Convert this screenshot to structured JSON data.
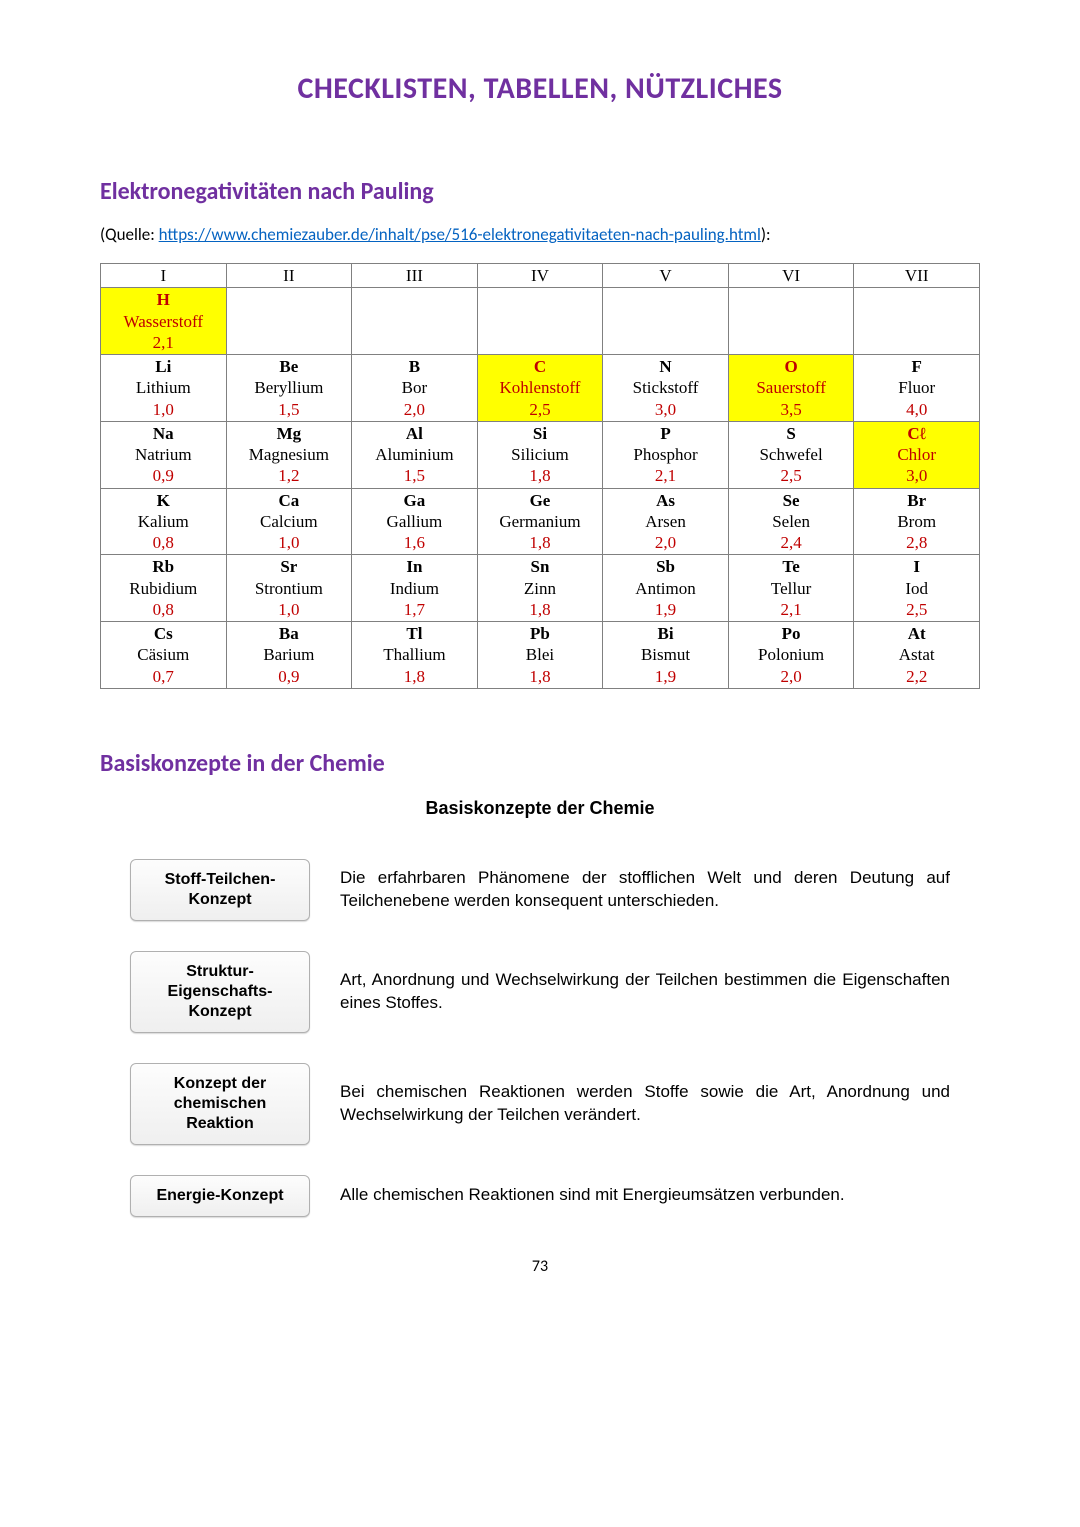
{
  "page": {
    "title": "CHECKLISTEN, TABELLEN, NÜTZLICHES",
    "title_color": "#7030a0",
    "number": "73"
  },
  "section1": {
    "heading": "Elektronegativitäten nach Pauling",
    "heading_color": "#7030a0",
    "source_prefix": "(Quelle: ",
    "source_link_text": "https://www.chemiezauber.de/inhalt/pse/516-elektronegativitaeten-nach-pauling.html",
    "source_link_color": "#0563c1",
    "source_suffix": "):"
  },
  "table": {
    "headers": [
      "I",
      "II",
      "III",
      "IV",
      "V",
      "VI",
      "VII"
    ],
    "value_color": "#c00000",
    "highlight_bg": "#ffff00",
    "highlight_text": "#c00000",
    "rows": [
      [
        {
          "sym": "H",
          "name": "Wasserstoff",
          "val": "2,1",
          "hl": true
        },
        null,
        null,
        null,
        null,
        null,
        null
      ],
      [
        {
          "sym": "Li",
          "name": "Lithium",
          "val": "1,0"
        },
        {
          "sym": "Be",
          "name": "Beryllium",
          "val": "1,5"
        },
        {
          "sym": "B",
          "name": "Bor",
          "val": "2,0"
        },
        {
          "sym": "C",
          "name": "Kohlenstoff",
          "val": "2,5",
          "hl": true
        },
        {
          "sym": "N",
          "name": "Stickstoff",
          "val": "3,0"
        },
        {
          "sym": "O",
          "name": "Sauerstoff",
          "val": "3,5",
          "hl": true
        },
        {
          "sym": "F",
          "name": "Fluor",
          "val": "4,0"
        }
      ],
      [
        {
          "sym": "Na",
          "name": "Natrium",
          "val": "0,9"
        },
        {
          "sym": "Mg",
          "name": "Magnesium",
          "val": "1,2"
        },
        {
          "sym": "Al",
          "name": "Aluminium",
          "val": "1,5"
        },
        {
          "sym": "Si",
          "name": "Silicium",
          "val": "1,8"
        },
        {
          "sym": "P",
          "name": "Phosphor",
          "val": "2,1"
        },
        {
          "sym": "S",
          "name": "Schwefel",
          "val": "2,5"
        },
        {
          "sym": "Cℓ",
          "name": "Chlor",
          "val": "3,0",
          "hl": true
        }
      ],
      [
        {
          "sym": "K",
          "name": "Kalium",
          "val": "0,8"
        },
        {
          "sym": "Ca",
          "name": "Calcium",
          "val": "1,0"
        },
        {
          "sym": "Ga",
          "name": "Gallium",
          "val": "1,6"
        },
        {
          "sym": "Ge",
          "name": "Germanium",
          "val": "1,8"
        },
        {
          "sym": "As",
          "name": "Arsen",
          "val": "2,0"
        },
        {
          "sym": "Se",
          "name": "Selen",
          "val": "2,4"
        },
        {
          "sym": "Br",
          "name": "Brom",
          "val": "2,8"
        }
      ],
      [
        {
          "sym": "Rb",
          "name": "Rubidium",
          "val": "0,8"
        },
        {
          "sym": "Sr",
          "name": "Strontium",
          "val": "1,0"
        },
        {
          "sym": "In",
          "name": "Indium",
          "val": "1,7"
        },
        {
          "sym": "Sn",
          "name": "Zinn",
          "val": "1,8"
        },
        {
          "sym": "Sb",
          "name": "Antimon",
          "val": "1,9"
        },
        {
          "sym": "Te",
          "name": "Tellur",
          "val": "2,1"
        },
        {
          "sym": "I",
          "name": "Iod",
          "val": "2,5"
        }
      ],
      [
        {
          "sym": "Cs",
          "name": "Cäsium",
          "val": "0,7"
        },
        {
          "sym": "Ba",
          "name": "Barium",
          "val": "0,9"
        },
        {
          "sym": "Tl",
          "name": "Thallium",
          "val": "1,8"
        },
        {
          "sym": "Pb",
          "name": "Blei",
          "val": "1,8"
        },
        {
          "sym": "Bi",
          "name": "Bismut",
          "val": "1,9"
        },
        {
          "sym": "Po",
          "name": "Polonium",
          "val": "2,0"
        },
        {
          "sym": "At",
          "name": "Astat",
          "val": "2,2"
        }
      ]
    ]
  },
  "section2": {
    "heading": "Basiskonzepte in der Chemie",
    "heading_color": "#7030a0",
    "subtitle": "Basiskonzepte der Chemie"
  },
  "concepts": [
    {
      "label": "Stoff-Teilchen-Konzept",
      "desc": "Die erfahrbaren Phänomene der stofflichen Welt und deren Deutung auf Teilchenebene werden konsequent unterschieden."
    },
    {
      "label": "Struktur-Eigenschafts-Konzept",
      "desc": "Art, Anordnung und Wechselwirkung der Teilchen bestimmen die Eigenschaften eines Stoffes."
    },
    {
      "label": "Konzept der chemischen Reaktion",
      "desc": "Bei chemischen Reaktionen werden Stoffe sowie die Art, Anordnung und Wechselwirkung der Teilchen verändert."
    },
    {
      "label": "Energie-Konzept",
      "desc": "Alle chemischen Reaktionen sind mit Energieum­sätzen verbunden."
    }
  ]
}
